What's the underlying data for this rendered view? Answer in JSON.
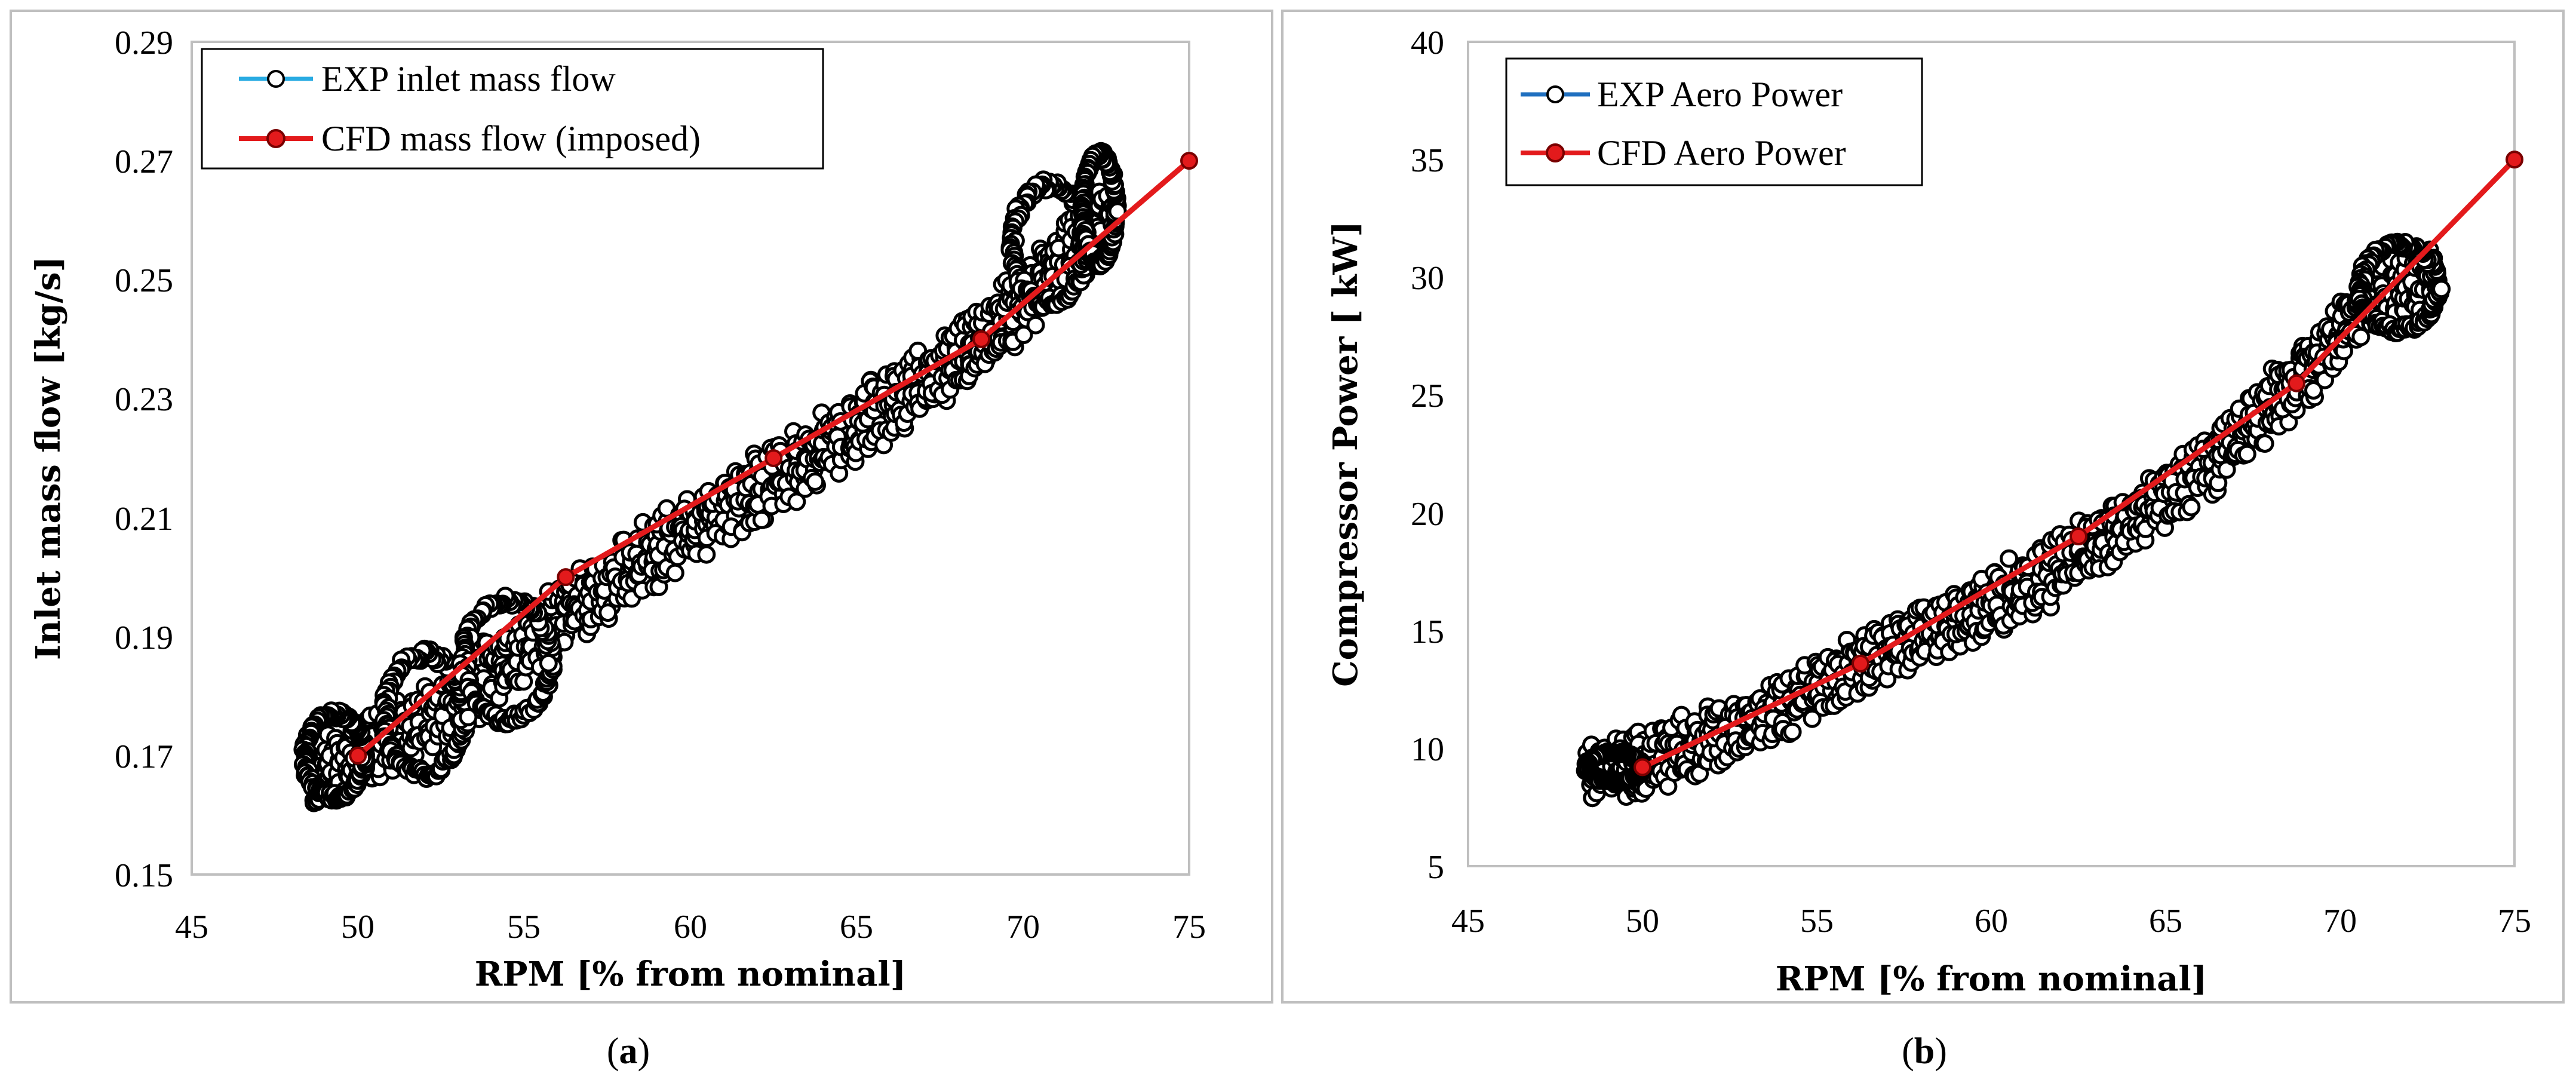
{
  "colors": {
    "exp_a_line": "#29abe2",
    "exp_b_line": "#1f6fbf",
    "exp_marker_fill": "#ffffff",
    "exp_marker_edge": "#000000",
    "cfd": "#e31a1c",
    "cfd_marker_edge": "#7a0000"
  },
  "chart_data": [
    {
      "type": "scatter",
      "id": "a",
      "caption_open": "(",
      "caption_letter": "a",
      "caption_close": ")",
      "title": "",
      "xlabel": "RPM [% from nominal]",
      "ylabel": "Inlet mass flow  [kg/s]",
      "xlim": [
        45,
        75
      ],
      "ylim": [
        0.15,
        0.29
      ],
      "xticks": [
        45,
        50,
        55,
        60,
        65,
        70,
        75
      ],
      "yticks": [
        0.15,
        0.17,
        0.19,
        0.21,
        0.23,
        0.25,
        0.27,
        0.29
      ],
      "ytick_labels": [
        "0.15",
        "0.17",
        "0.19",
        "0.21",
        "0.23",
        "0.25",
        "0.27",
        "0.29"
      ],
      "xtick_labels": [
        "45",
        "50",
        "55",
        "60",
        "65",
        "70",
        "75"
      ],
      "legend_position": "top-left",
      "series": [
        {
          "name": "EXP inlet mass flow",
          "kind": "exp",
          "centerline": [
            [
              48.5,
              0.167
            ],
            [
              50,
              0.17
            ],
            [
              52,
              0.176
            ],
            [
              54,
              0.184
            ],
            [
              56,
              0.193
            ],
            [
              58,
              0.201
            ],
            [
              60,
              0.208
            ],
            [
              62,
              0.215
            ],
            [
              64,
              0.222
            ],
            [
              66,
              0.229
            ],
            [
              68,
              0.237
            ],
            [
              69.5,
              0.244
            ],
            [
              71,
              0.252
            ],
            [
              72.7,
              0.262
            ]
          ],
          "band_half_width": 0.004,
          "loops": [
            {
              "cx": 49.3,
              "cy": 0.17,
              "rx": 0.9,
              "ry": 0.007
            },
            {
              "cx": 52.0,
              "cy": 0.177,
              "rx": 1.2,
              "ry": 0.01
            },
            {
              "cx": 54.5,
              "cy": 0.186,
              "rx": 1.3,
              "ry": 0.01
            },
            {
              "cx": 70.8,
              "cy": 0.256,
              "rx": 1.1,
              "ry": 0.01
            },
            {
              "cx": 72.3,
              "cy": 0.262,
              "rx": 0.5,
              "ry": 0.009
            }
          ]
        },
        {
          "name": "CFD mass flow (imposed)",
          "kind": "cfd",
          "x": [
            50,
            56.25,
            62.5,
            68.75,
            75
          ],
          "y": [
            0.17,
            0.2,
            0.22,
            0.24,
            0.27
          ]
        }
      ]
    },
    {
      "type": "scatter",
      "id": "b",
      "caption_open": "(",
      "caption_letter": "b",
      "caption_close": ")",
      "title": "",
      "xlabel": "RPM [% from nominal]",
      "ylabel": "Compressor Power  [ kW]",
      "xlim": [
        45,
        75
      ],
      "ylim": [
        5,
        40
      ],
      "xticks": [
        45,
        50,
        55,
        60,
        65,
        70,
        75
      ],
      "yticks": [
        5,
        10,
        15,
        20,
        25,
        30,
        35,
        40
      ],
      "ytick_labels": [
        "5",
        "10",
        "15",
        "20",
        "25",
        "30",
        "35",
        "40"
      ],
      "xtick_labels": [
        "45",
        "50",
        "55",
        "60",
        "65",
        "70",
        "75"
      ],
      "legend_position": "top-left",
      "series": [
        {
          "name": "EXP Aero Power",
          "kind": "exp",
          "centerline": [
            [
              48.5,
              9.0
            ],
            [
              50,
              9.3
            ],
            [
              52,
              10.5
            ],
            [
              54,
              11.8
            ],
            [
              56,
              13.3
            ],
            [
              58,
              14.8
            ],
            [
              60,
              16.2
            ],
            [
              62,
              17.7
            ],
            [
              64,
              19.6
            ],
            [
              66,
              21.8
            ],
            [
              68,
              24.5
            ],
            [
              69.5,
              26.8
            ],
            [
              71,
              29.3
            ],
            [
              72.7,
              30.0
            ]
          ],
          "band_half_width": 0.9,
          "loops": [
            {
              "cx": 49.2,
              "cy": 9.2,
              "rx": 0.8,
              "ry": 0.6
            },
            {
              "cx": 71.7,
              "cy": 29.6,
              "rx": 1.1,
              "ry": 1.8
            }
          ]
        },
        {
          "name": "CFD Aero Power",
          "kind": "cfd",
          "x": [
            50,
            56.25,
            62.5,
            68.75,
            75
          ],
          "y": [
            9.2,
            13.6,
            19.0,
            25.5,
            35.0
          ]
        }
      ]
    }
  ]
}
